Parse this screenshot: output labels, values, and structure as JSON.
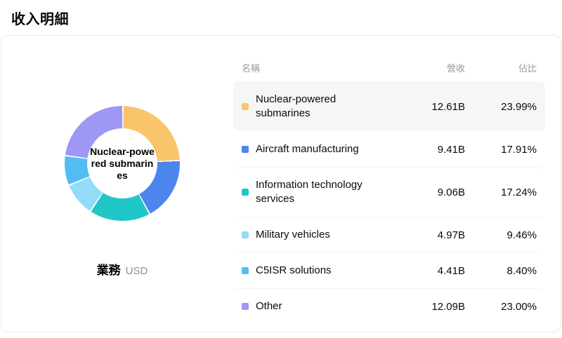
{
  "page": {
    "title": "收入明細"
  },
  "card": {
    "donut": {
      "center_label": "Nuclear-powered submarines",
      "caption": "業務",
      "unit": "USD"
    },
    "table": {
      "headers": {
        "name": "名稱",
        "revenue": "營收",
        "share": "佔比"
      },
      "rows": [
        {
          "name": "Nuclear-powered submarines",
          "revenue": "12.61B",
          "share": "23.99%",
          "color": "#F9C46A",
          "highlighted": true
        },
        {
          "name": "Aircraft manufacturing",
          "revenue": "9.41B",
          "share": "17.91%",
          "color": "#4C85EE",
          "highlighted": false
        },
        {
          "name": "Information technology services",
          "revenue": "9.06B",
          "share": "17.24%",
          "color": "#20C7C7",
          "highlighted": false
        },
        {
          "name": "Military vehicles",
          "revenue": "4.97B",
          "share": "9.46%",
          "color": "#92DCF8",
          "highlighted": false
        },
        {
          "name": "C5ISR solutions",
          "revenue": "4.41B",
          "share": "8.40%",
          "color": "#53BDF1",
          "highlighted": false
        },
        {
          "name": "Other",
          "revenue": "12.09B",
          "share": "23.00%",
          "color": "#9E97F3",
          "highlighted": false
        }
      ]
    }
  },
  "chart_data": {
    "type": "pie",
    "donut": true,
    "title": "收入明細",
    "unit": "USD",
    "legend_position": "right",
    "selected": "Nuclear-powered submarines",
    "categories": [
      "Nuclear-powered submarines",
      "Aircraft manufacturing",
      "Information technology services",
      "Military vehicles",
      "C5ISR solutions",
      "Other"
    ],
    "values_billions": [
      12.61,
      9.41,
      9.06,
      4.97,
      4.41,
      12.09
    ],
    "percentages": [
      23.99,
      17.91,
      17.24,
      9.46,
      8.4,
      23.0
    ],
    "colors": [
      "#F9C46A",
      "#4C85EE",
      "#20C7C7",
      "#92DCF8",
      "#53BDF1",
      "#9E97F3"
    ]
  }
}
